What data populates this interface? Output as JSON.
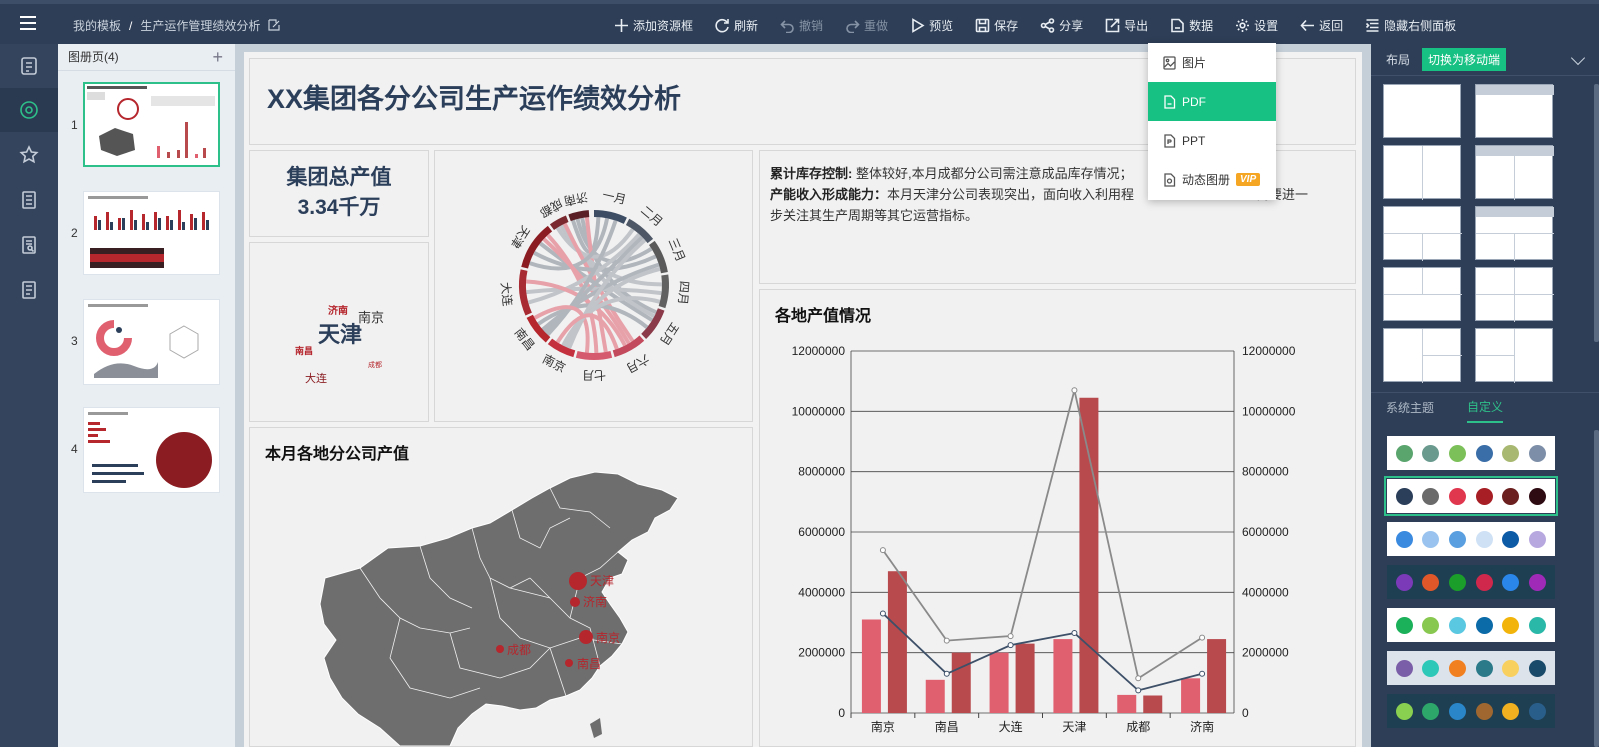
{
  "breadcrumb": {
    "root": "我的模板",
    "separator": "/",
    "current": "生产运作管理绩效分析"
  },
  "toolbar": [
    {
      "label": "添加资源框",
      "icon": "plus-icon",
      "disabled": false
    },
    {
      "label": "刷新",
      "icon": "refresh-icon",
      "disabled": false
    },
    {
      "label": "撤销",
      "icon": "undo-icon",
      "disabled": true
    },
    {
      "label": "重做",
      "icon": "redo-icon",
      "disabled": true
    },
    {
      "label": "预览",
      "icon": "play-icon",
      "disabled": false
    },
    {
      "label": "保存",
      "icon": "save-icon",
      "disabled": false
    },
    {
      "label": "分享",
      "icon": "share-icon",
      "disabled": false
    },
    {
      "label": "导出",
      "icon": "export-icon",
      "disabled": false
    },
    {
      "label": "数据",
      "icon": "data-icon",
      "disabled": false
    },
    {
      "label": "设置",
      "icon": "gear-icon",
      "disabled": false
    },
    {
      "label": "返回",
      "icon": "back-arrow-icon",
      "disabled": false
    },
    {
      "label": "隐藏右侧面板",
      "icon": "hide-panel-icon",
      "disabled": false
    }
  ],
  "export_menu": {
    "items": [
      {
        "label": "图片",
        "icon": "image-icon"
      },
      {
        "label": "PDF",
        "icon": "pdf-icon",
        "active": true
      },
      {
        "label": "PPT",
        "icon": "ppt-icon"
      },
      {
        "label": "动态图册",
        "icon": "dynamic-album-icon",
        "badge": "VIP"
      }
    ]
  },
  "leftnav": {
    "icons": [
      "document-icon",
      "circle-target-icon",
      "star-icon",
      "report-icon",
      "search-doc-icon",
      "list-doc-icon"
    ],
    "active_index": 1
  },
  "pages_panel": {
    "title": "图册页(4)",
    "add": "+",
    "pages": [
      "1",
      "2",
      "3",
      "4"
    ],
    "active_index": 0
  },
  "dashboard": {
    "title": "XX集团各分公司生产运作绩效分析",
    "kpi": {
      "label": "集团总产值",
      "value": "3.34千万"
    },
    "wordcloud": [
      {
        "text": "天津",
        "color": "#2b3e5a"
      },
      {
        "text": "南京",
        "color": "#333333"
      },
      {
        "text": "济南",
        "color": "#b5262d"
      },
      {
        "text": "南昌",
        "color": "#b5262d"
      },
      {
        "text": "大连",
        "color": "#8b1d22"
      },
      {
        "text": "成都",
        "color": "#b5262d"
      }
    ],
    "chord": {
      "cities": [
        "济南",
        "成都",
        "天津",
        "大连",
        "南昌",
        "南京"
      ],
      "months": [
        "一月",
        "二月",
        "三月",
        "四月",
        "五月",
        "六月",
        "七月"
      ]
    },
    "description": {
      "p1_label": "累计库存控制:",
      "p1_text": "整体较好,本月成都分公司需注意成品库存情况；",
      "p2_label": "产能收入形成能力：",
      "p2_text": "本月天津分公司表现突出，面向收入利用程",
      "p2_text2": "需要进一",
      "p2_text3": "步关注其生产周期等其它运营指标。"
    },
    "map": {
      "title": "本月各地分公司产值",
      "markers": [
        "天津",
        "济南",
        "南京",
        "成都",
        "南昌"
      ]
    },
    "chart_title": "各地产值情况"
  },
  "chart_data": {
    "type": "bar",
    "title": "各地产值情况",
    "categories": [
      "南京",
      "南昌",
      "大连",
      "天津",
      "成都",
      "济南"
    ],
    "ylim": [
      0,
      12000000
    ],
    "yticks": [
      "12000000",
      "10000000",
      "8000000",
      "6000000",
      "4000000",
      "2000000",
      "0"
    ],
    "series": [
      {
        "type": "bar",
        "color": "#e06070",
        "values": [
          3100000,
          1100000,
          2000000,
          2450000,
          600000,
          1150000
        ]
      },
      {
        "type": "bar",
        "color": "#b84a4e",
        "values": [
          4700000,
          2000000,
          2300000,
          10450000,
          580000,
          2450000
        ]
      },
      {
        "type": "line",
        "color": "#8a8a8a",
        "values": [
          5400000,
          2400000,
          2550000,
          10700000,
          1150000,
          2500000
        ]
      },
      {
        "type": "line",
        "color": "#3d5068",
        "values": [
          3300000,
          1300000,
          2250000,
          2650000,
          750000,
          1300000
        ]
      }
    ],
    "grid": true
  },
  "right_panel": {
    "layout_label": "布局",
    "switch_button": "切换为移动端",
    "theme_tabs": [
      "系统主题",
      "自定义"
    ],
    "active_theme_tab": 1,
    "palettes": [
      {
        "bg": "#ffffff",
        "colors": [
          "#5aa46e",
          "#6a9a8e",
          "#7cc05a",
          "#3a6ea8",
          "#a8b870",
          "#7d8fa8"
        ]
      },
      {
        "bg": "#ffffff",
        "colors": [
          "#2b3e5a",
          "#6a6a6a",
          "#e0364e",
          "#a71f24",
          "#6b1f1f",
          "#2e0a12"
        ],
        "selected": true
      },
      {
        "bg": "#ffffff",
        "colors": [
          "#3a8ae0",
          "#9ac4ef",
          "#5a9fe0",
          "#cfe1f5",
          "#0d5aa6",
          "#b8a8e0"
        ]
      },
      {
        "bg": "#1e3f52",
        "colors": [
          "#7b3ab8",
          "#e0582a",
          "#1b9e2a",
          "#d0284c",
          "#2a86e8",
          "#a02ab8"
        ]
      },
      {
        "bg": "#ffffff",
        "colors": [
          "#1bb05a",
          "#88c850",
          "#5ac8e0",
          "#0b6aa8",
          "#f2b40a",
          "#2ab8a8"
        ]
      },
      {
        "bg": "#dde3ea",
        "colors": [
          "#7b5ea8",
          "#2ec8b8",
          "#f08020",
          "#2a7a8a",
          "#f8d060",
          "#1a4a6a"
        ]
      },
      {
        "bg": "#1e3f52",
        "colors": [
          "#8ad050",
          "#2ea86a",
          "#2a86c8",
          "#a06830",
          "#f0b020",
          "#2a5e8a"
        ]
      }
    ]
  }
}
